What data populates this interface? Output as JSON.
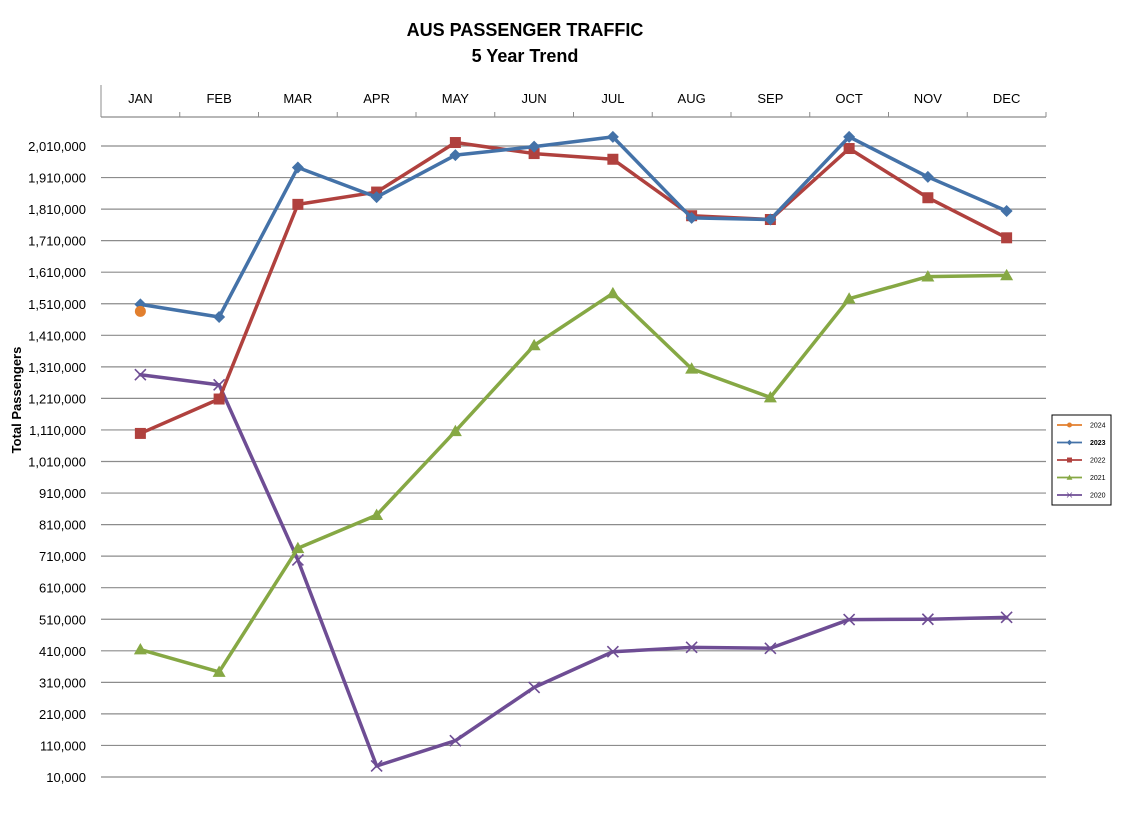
{
  "chart_data": {
    "type": "line",
    "title": "AUS PASSENGER TRAFFIC",
    "subtitle": "5 Year Trend",
    "xlabel": "",
    "ylabel": "Total Passengers",
    "categories": [
      "JAN",
      "FEB",
      "MAR",
      "APR",
      "MAY",
      "JUN",
      "JUL",
      "AUG",
      "SEP",
      "OCT",
      "NOV",
      "DEC"
    ],
    "x_axis_position": "top",
    "ylim": [
      10000,
      2110000
    ],
    "yticks": [
      10000,
      110000,
      210000,
      310000,
      410000,
      510000,
      610000,
      710000,
      810000,
      910000,
      1010000,
      1110000,
      1210000,
      1310000,
      1410000,
      1510000,
      1610000,
      1710000,
      1810000,
      1910000,
      2010000
    ],
    "ytick_labels": [
      "10,000",
      "110,000",
      "210,000",
      "310,000",
      "410,000",
      "510,000",
      "610,000",
      "710,000",
      "810,000",
      "910,000",
      "1,010,000",
      "1,110,000",
      "1,210,000",
      "1,310,000",
      "1,410,000",
      "1,510,000",
      "1,610,000",
      "1,710,000",
      "1,810,000",
      "1,910,000",
      "2,010,000"
    ],
    "grid": "horizontal",
    "legend_position": "right",
    "series": [
      {
        "name": "2024",
        "color": "#E27F2E",
        "marker": "circle",
        "values": [
          1486000,
          null,
          null,
          null,
          null,
          null,
          null,
          null,
          null,
          null,
          null,
          null
        ]
      },
      {
        "name": "2023",
        "color": "#4472A8",
        "marker": "diamond",
        "values": [
          1508000,
          1468000,
          1942000,
          1848000,
          1981000,
          2008000,
          2039000,
          1782000,
          1777000,
          2039000,
          1912000,
          1804000
        ]
      },
      {
        "name": "2022",
        "color": "#B0413E",
        "marker": "square",
        "values": [
          1099000,
          1208000,
          1825000,
          1864000,
          2021000,
          1986000,
          1968000,
          1789000,
          1777000,
          2002000,
          1846000,
          1719000
        ]
      },
      {
        "name": "2021",
        "color": "#86A844",
        "marker": "triangle",
        "values": [
          414000,
          343000,
          735000,
          840000,
          1106000,
          1378000,
          1543000,
          1304000,
          1213000,
          1526000,
          1596000,
          1600000
        ]
      },
      {
        "name": "2020",
        "color": "#6E4D94",
        "marker": "x",
        "values": [
          1285000,
          1253000,
          698000,
          45000,
          125000,
          294000,
          407000,
          421000,
          418000,
          509000,
          510000,
          516000
        ]
      }
    ]
  }
}
